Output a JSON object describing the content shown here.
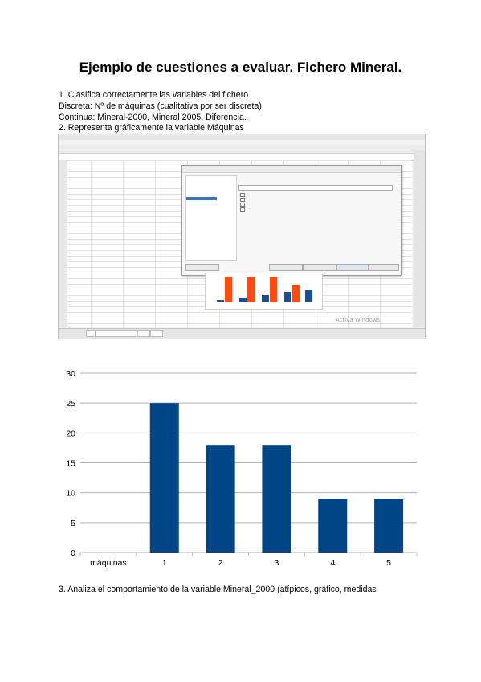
{
  "document": {
    "title": "Ejemplo de cuestiones a evaluar. Fichero Mineral.",
    "lines": [
      "1. Clasifica correctamente las variables del fichero",
      "Discreta: Nº de máquinas (cualitativa por ser discreta)",
      "Continua: Mineral-2000, Mineral 2005, Diferencia.",
      "2. Representa gráficamente la variable Máquinas"
    ],
    "question3": "3. Analiza el comportamiento de la variable Mineral_2000 (atípicos, gráfico, medidas"
  },
  "screenshot": {
    "watermark": "Activa Windows"
  },
  "chart_data": {
    "type": "bar",
    "categories": [
      "máquinas",
      "1",
      "2",
      "3",
      "4",
      "5"
    ],
    "series": [
      {
        "values": [
          0,
          25,
          18,
          18,
          9,
          9
        ]
      }
    ],
    "y_ticks": [
      "0",
      "5",
      "10",
      "15",
      "20",
      "25",
      "30"
    ],
    "ylim": [
      0,
      30
    ],
    "grid": true,
    "colors": {
      "bar": "#004586",
      "grid": "#b3b3b3"
    }
  }
}
